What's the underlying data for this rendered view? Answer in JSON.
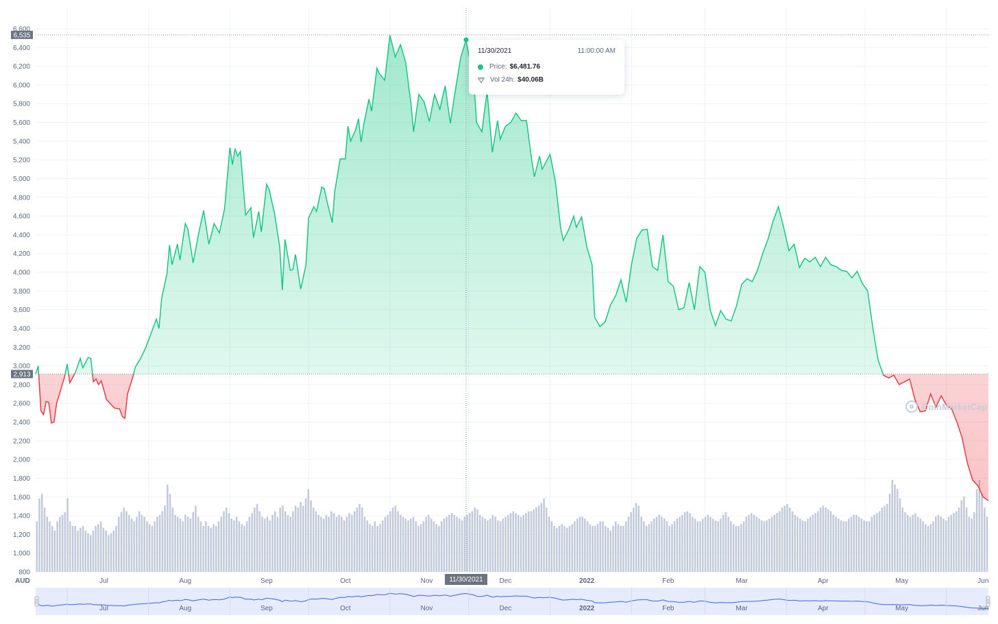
{
  "chart_data": {
    "type": "area",
    "currency_label": "AUD",
    "ylim": [
      800,
      6600
    ],
    "y_ticks": [
      "800",
      "1,000",
      "1,200",
      "1,400",
      "1,600",
      "1,800",
      "2,000",
      "2,200",
      "2,400",
      "2,600",
      "2,800",
      "3,000",
      "3,200",
      "3,400",
      "3,600",
      "3,800",
      "4,000",
      "4,200",
      "4,400",
      "4,600",
      "4,800",
      "5,000",
      "5,200",
      "5,400",
      "5,600",
      "5,800",
      "6,000",
      "6,200",
      "6,400",
      "6,600"
    ],
    "x_ticks": [
      {
        "label": "Jul",
        "bold": false
      },
      {
        "label": "Aug",
        "bold": false
      },
      {
        "label": "Sep",
        "bold": false
      },
      {
        "label": "Oct",
        "bold": false
      },
      {
        "label": "Nov",
        "bold": false
      },
      {
        "label": "Dec",
        "bold": false
      },
      {
        "label": "2022",
        "bold": true
      },
      {
        "label": "Feb",
        "bold": false
      },
      {
        "label": "Mar",
        "bold": false
      },
      {
        "label": "Apr",
        "bold": false
      },
      {
        "label": "May",
        "bold": false
      },
      {
        "label": "Jun",
        "bold": false
      }
    ],
    "x_start": "2021-06-19",
    "x_end": "2022-06-17",
    "baseline_value": 2913,
    "baseline_label": "2,913",
    "high_label": "6,535",
    "high_value": 6535,
    "price_keypoints": [
      [
        "2021-06-19",
        2913
      ],
      [
        "2021-06-20",
        3000
      ],
      [
        "2021-06-21",
        2520
      ],
      [
        "2021-06-22",
        2480
      ],
      [
        "2021-06-23",
        2620
      ],
      [
        "2021-06-24",
        2610
      ],
      [
        "2021-06-25",
        2390
      ],
      [
        "2021-06-26",
        2400
      ],
      [
        "2021-06-27",
        2600
      ],
      [
        "2021-06-30",
        2880
      ],
      [
        "2021-07-01",
        3020
      ],
      [
        "2021-07-02",
        2820
      ],
      [
        "2021-07-04",
        2920
      ],
      [
        "2021-07-06",
        3080
      ],
      [
        "2021-07-07",
        2980
      ],
      [
        "2021-07-09",
        3090
      ],
      [
        "2021-07-10",
        3080
      ],
      [
        "2021-07-11",
        2830
      ],
      [
        "2021-07-12",
        2860
      ],
      [
        "2021-07-13",
        2800
      ],
      [
        "2021-07-14",
        2840
      ],
      [
        "2021-07-16",
        2640
      ],
      [
        "2021-07-18",
        2580
      ],
      [
        "2021-07-19",
        2550
      ],
      [
        "2021-07-21",
        2540
      ],
      [
        "2021-07-22",
        2460
      ],
      [
        "2021-07-23",
        2440
      ],
      [
        "2021-07-24",
        2700
      ],
      [
        "2021-07-26",
        2880
      ],
      [
        "2021-07-27",
        2990
      ],
      [
        "2021-07-29",
        3080
      ],
      [
        "2021-07-31",
        3200
      ],
      [
        "2021-08-02",
        3350
      ],
      [
        "2021-08-04",
        3500
      ],
      [
        "2021-08-05",
        3400
      ],
      [
        "2021-08-06",
        3720
      ],
      [
        "2021-08-08",
        3980
      ],
      [
        "2021-08-09",
        4290
      ],
      [
        "2021-08-10",
        4080
      ],
      [
        "2021-08-12",
        4300
      ],
      [
        "2021-08-13",
        4130
      ],
      [
        "2021-08-15",
        4520
      ],
      [
        "2021-08-16",
        4460
      ],
      [
        "2021-08-18",
        4100
      ],
      [
        "2021-08-20",
        4400
      ],
      [
        "2021-08-22",
        4660
      ],
      [
        "2021-08-24",
        4300
      ],
      [
        "2021-08-26",
        4520
      ],
      [
        "2021-08-28",
        4420
      ],
      [
        "2021-08-30",
        4680
      ],
      [
        "2021-09-01",
        5330
      ],
      [
        "2021-09-02",
        5150
      ],
      [
        "2021-09-03",
        5320
      ],
      [
        "2021-09-04",
        5240
      ],
      [
        "2021-09-05",
        5290
      ],
      [
        "2021-09-07",
        4610
      ],
      [
        "2021-09-09",
        4690
      ],
      [
        "2021-09-10",
        4370
      ],
      [
        "2021-09-12",
        4650
      ],
      [
        "2021-09-13",
        4430
      ],
      [
        "2021-09-15",
        4940
      ],
      [
        "2021-09-16",
        4880
      ],
      [
        "2021-09-18",
        4630
      ],
      [
        "2021-09-20",
        4270
      ],
      [
        "2021-09-21",
        3810
      ],
      [
        "2021-09-22",
        4350
      ],
      [
        "2021-09-24",
        4020
      ],
      [
        "2021-09-25",
        4030
      ],
      [
        "2021-09-26",
        4190
      ],
      [
        "2021-09-28",
        3820
      ],
      [
        "2021-09-30",
        4080
      ],
      [
        "2021-10-01",
        4580
      ],
      [
        "2021-10-03",
        4700
      ],
      [
        "2021-10-04",
        4650
      ],
      [
        "2021-10-06",
        4910
      ],
      [
        "2021-10-07",
        4890
      ],
      [
        "2021-10-08",
        4760
      ],
      [
        "2021-10-10",
        4530
      ],
      [
        "2021-10-11",
        4870
      ],
      [
        "2021-10-13",
        5210
      ],
      [
        "2021-10-15",
        5210
      ],
      [
        "2021-10-16",
        5560
      ],
      [
        "2021-10-17",
        5400
      ],
      [
        "2021-10-19",
        5530
      ],
      [
        "2021-10-20",
        5640
      ],
      [
        "2021-10-21",
        5390
      ],
      [
        "2021-10-22",
        5580
      ],
      [
        "2021-10-24",
        5850
      ],
      [
        "2021-10-25",
        5720
      ],
      [
        "2021-10-27",
        6180
      ],
      [
        "2021-10-28",
        6120
      ],
      [
        "2021-10-30",
        6050
      ],
      [
        "2021-11-01",
        6530
      ],
      [
        "2021-11-03",
        6300
      ],
      [
        "2021-11-05",
        6430
      ],
      [
        "2021-11-07",
        6240
      ],
      [
        "2021-11-09",
        5800
      ],
      [
        "2021-11-10",
        5500
      ],
      [
        "2021-11-12",
        5900
      ],
      [
        "2021-11-14",
        5820
      ],
      [
        "2021-11-16",
        5610
      ],
      [
        "2021-11-18",
        5900
      ],
      [
        "2021-11-20",
        5740
      ],
      [
        "2021-11-22",
        5990
      ],
      [
        "2021-11-24",
        5590
      ],
      [
        "2021-11-26",
        5960
      ],
      [
        "2021-11-28",
        6300
      ],
      [
        "2021-11-30",
        6482
      ],
      [
        "2021-12-01",
        6320
      ],
      [
        "2021-12-03",
        6020
      ],
      [
        "2021-12-04",
        5600
      ],
      [
        "2021-12-06",
        5500
      ],
      [
        "2021-12-08",
        5930
      ],
      [
        "2021-12-10",
        5280
      ],
      [
        "2021-12-12",
        5620
      ],
      [
        "2021-12-13",
        5420
      ],
      [
        "2021-12-15",
        5560
      ],
      [
        "2021-12-17",
        5600
      ],
      [
        "2021-12-19",
        5700
      ],
      [
        "2021-12-21",
        5620
      ],
      [
        "2021-12-23",
        5620
      ],
      [
        "2021-12-25",
        5200
      ],
      [
        "2021-12-26",
        5020
      ],
      [
        "2021-12-28",
        5240
      ],
      [
        "2021-12-29",
        5100
      ],
      [
        "2022-01-01",
        5260
      ],
      [
        "2022-01-03",
        4970
      ],
      [
        "2022-01-05",
        4480
      ],
      [
        "2022-01-06",
        4340
      ],
      [
        "2022-01-08",
        4450
      ],
      [
        "2022-01-10",
        4600
      ],
      [
        "2022-01-11",
        4480
      ],
      [
        "2022-01-13",
        4590
      ],
      [
        "2022-01-15",
        4270
      ],
      [
        "2022-01-17",
        4080
      ],
      [
        "2022-01-18",
        3520
      ],
      [
        "2022-01-20",
        3420
      ],
      [
        "2022-01-22",
        3470
      ],
      [
        "2022-01-24",
        3650
      ],
      [
        "2022-01-26",
        3750
      ],
      [
        "2022-01-28",
        3920
      ],
      [
        "2022-01-30",
        3680
      ],
      [
        "2022-02-01",
        4080
      ],
      [
        "2022-02-03",
        4360
      ],
      [
        "2022-02-05",
        4450
      ],
      [
        "2022-02-07",
        4460
      ],
      [
        "2022-02-09",
        4060
      ],
      [
        "2022-02-11",
        4020
      ],
      [
        "2022-02-13",
        4400
      ],
      [
        "2022-02-15",
        3900
      ],
      [
        "2022-02-17",
        3850
      ],
      [
        "2022-02-19",
        3600
      ],
      [
        "2022-02-21",
        3620
      ],
      [
        "2022-02-23",
        3890
      ],
      [
        "2022-02-25",
        3600
      ],
      [
        "2022-02-27",
        4060
      ],
      [
        "2022-03-01",
        4000
      ],
      [
        "2022-03-03",
        3600
      ],
      [
        "2022-03-05",
        3430
      ],
      [
        "2022-03-07",
        3590
      ],
      [
        "2022-03-09",
        3500
      ],
      [
        "2022-03-11",
        3480
      ],
      [
        "2022-03-13",
        3640
      ],
      [
        "2022-03-15",
        3870
      ],
      [
        "2022-03-17",
        3930
      ],
      [
        "2022-03-19",
        3900
      ],
      [
        "2022-03-21",
        4020
      ],
      [
        "2022-03-23",
        4200
      ],
      [
        "2022-03-25",
        4350
      ],
      [
        "2022-03-27",
        4550
      ],
      [
        "2022-03-29",
        4700
      ],
      [
        "2022-03-31",
        4480
      ],
      [
        "2022-04-02",
        4230
      ],
      [
        "2022-04-04",
        4300
      ],
      [
        "2022-04-06",
        4050
      ],
      [
        "2022-04-08",
        4150
      ],
      [
        "2022-04-10",
        4110
      ],
      [
        "2022-04-12",
        4160
      ],
      [
        "2022-04-14",
        4060
      ],
      [
        "2022-04-16",
        4160
      ],
      [
        "2022-04-18",
        4080
      ],
      [
        "2022-04-20",
        4060
      ],
      [
        "2022-04-22",
        4020
      ],
      [
        "2022-04-24",
        4010
      ],
      [
        "2022-04-26",
        3940
      ],
      [
        "2022-04-28",
        4010
      ],
      [
        "2022-04-30",
        3880
      ],
      [
        "2022-05-02",
        3800
      ],
      [
        "2022-05-04",
        3400
      ],
      [
        "2022-05-06",
        3060
      ],
      [
        "2022-05-08",
        2900
      ],
      [
        "2022-05-10",
        2870
      ],
      [
        "2022-05-12",
        2900
      ],
      [
        "2022-05-14",
        2800
      ],
      [
        "2022-05-16",
        2830
      ],
      [
        "2022-05-18",
        2860
      ],
      [
        "2022-05-20",
        2640
      ],
      [
        "2022-05-22",
        2510
      ],
      [
        "2022-05-24",
        2520
      ],
      [
        "2022-05-26",
        2700
      ],
      [
        "2022-05-28",
        2560
      ],
      [
        "2022-05-30",
        2680
      ],
      [
        "2022-06-01",
        2580
      ],
      [
        "2022-06-03",
        2540
      ],
      [
        "2022-06-05",
        2400
      ],
      [
        "2022-06-07",
        2230
      ],
      [
        "2022-06-09",
        1960
      ],
      [
        "2022-06-11",
        1780
      ],
      [
        "2022-06-13",
        1720
      ],
      [
        "2022-06-15",
        1600
      ],
      [
        "2022-06-17",
        1560
      ]
    ],
    "volume_levels": [
      0.55,
      0.8,
      0.85,
      0.7,
      0.6,
      0.55,
      0.5,
      0.45,
      0.55,
      0.6,
      0.62,
      0.65,
      0.8,
      0.55,
      0.5,
      0.5,
      0.45,
      0.48,
      0.5,
      0.45,
      0.42,
      0.4,
      0.45,
      0.5,
      0.52,
      0.55,
      0.48,
      0.45,
      0.4,
      0.42,
      0.45,
      0.5,
      0.6,
      0.65,
      0.7,
      0.66,
      0.62,
      0.58,
      0.55,
      0.6,
      0.66,
      0.62,
      0.6,
      0.55,
      0.52,
      0.5,
      0.55,
      0.6,
      0.62,
      0.66,
      0.72,
      0.95,
      0.85,
      0.7,
      0.62,
      0.6,
      0.58,
      0.55,
      0.62,
      0.6,
      0.58,
      0.65,
      0.72,
      0.6,
      0.55,
      0.5,
      0.55,
      0.5,
      0.48,
      0.52,
      0.5,
      0.55,
      0.6,
      0.66,
      0.7,
      0.64,
      0.58,
      0.56,
      0.6,
      0.55,
      0.52,
      0.5,
      0.55,
      0.6,
      0.64,
      0.7,
      0.74,
      0.66,
      0.6,
      0.58,
      0.6,
      0.56,
      0.62,
      0.66,
      0.6,
      0.7,
      0.72,
      0.66,
      0.62,
      0.6,
      0.66,
      0.72,
      0.7,
      0.76,
      0.72,
      0.8,
      0.9,
      0.78,
      0.7,
      0.66,
      0.62,
      0.6,
      0.58,
      0.62,
      0.6,
      0.66,
      0.64,
      0.6,
      0.62,
      0.6,
      0.56,
      0.6,
      0.64,
      0.62,
      0.66,
      0.7,
      0.74,
      0.7,
      0.6,
      0.56,
      0.52,
      0.5,
      0.55,
      0.5,
      0.52,
      0.56,
      0.6,
      0.62,
      0.66,
      0.7,
      0.72,
      0.66,
      0.62,
      0.6,
      0.58,
      0.56,
      0.58,
      0.6,
      0.55,
      0.5,
      0.52,
      0.55,
      0.6,
      0.62,
      0.58,
      0.55,
      0.52,
      0.5,
      0.55,
      0.58,
      0.6,
      0.62,
      0.64,
      0.62,
      0.6,
      0.58,
      0.56,
      0.6,
      0.62,
      0.64,
      0.66,
      0.7,
      0.68,
      0.62,
      0.6,
      0.58,
      0.56,
      0.58,
      0.62,
      0.6,
      0.56,
      0.55,
      0.58,
      0.6,
      0.62,
      0.64,
      0.66,
      0.64,
      0.62,
      0.6,
      0.62,
      0.64,
      0.66,
      0.66,
      0.68,
      0.7,
      0.72,
      0.75,
      0.8,
      0.7,
      0.6,
      0.55,
      0.5,
      0.48,
      0.5,
      0.52,
      0.5,
      0.48,
      0.5,
      0.52,
      0.55,
      0.58,
      0.6,
      0.6,
      0.58,
      0.55,
      0.52,
      0.5,
      0.5,
      0.52,
      0.55,
      0.55,
      0.5,
      0.48,
      0.45,
      0.5,
      0.55,
      0.52,
      0.5,
      0.5,
      0.55,
      0.6,
      0.65,
      0.7,
      0.75,
      0.72,
      0.6,
      0.55,
      0.5,
      0.52,
      0.55,
      0.58,
      0.6,
      0.62,
      0.6,
      0.58,
      0.55,
      0.5,
      0.52,
      0.55,
      0.58,
      0.6,
      0.62,
      0.65,
      0.66,
      0.64,
      0.6,
      0.58,
      0.55,
      0.55,
      0.58,
      0.6,
      0.62,
      0.6,
      0.58,
      0.56,
      0.55,
      0.58,
      0.62,
      0.65,
      0.6,
      0.55,
      0.52,
      0.5,
      0.5,
      0.52,
      0.55,
      0.6,
      0.62,
      0.64,
      0.62,
      0.6,
      0.58,
      0.56,
      0.55,
      0.56,
      0.58,
      0.6,
      0.62,
      0.64,
      0.66,
      0.7,
      0.72,
      0.74,
      0.7,
      0.66,
      0.62,
      0.6,
      0.58,
      0.56,
      0.55,
      0.58,
      0.6,
      0.62,
      0.64,
      0.66,
      0.7,
      0.72,
      0.7,
      0.68,
      0.66,
      0.62,
      0.6,
      0.58,
      0.56,
      0.55,
      0.55,
      0.58,
      0.6,
      0.62,
      0.62,
      0.6,
      0.58,
      0.56,
      0.55,
      0.55,
      0.6,
      0.62,
      0.64,
      0.66,
      0.7,
      0.72,
      0.74,
      0.85,
      1.0,
      0.95,
      0.9,
      0.8,
      0.7,
      0.65,
      0.62,
      0.6,
      0.62,
      0.64,
      0.6,
      0.58,
      0.55,
      0.52,
      0.5,
      0.52,
      0.55,
      0.6,
      0.62,
      0.6,
      0.58,
      0.56,
      0.6,
      0.62,
      0.64,
      0.66,
      0.7,
      0.78,
      0.82,
      0.7,
      0.6,
      0.58,
      0.65,
      0.9,
      1.0,
      0.85,
      0.7,
      0.6
    ]
  },
  "tooltip": {
    "date": "11/30/2021",
    "time": "11:00:00 AM",
    "price_label": "Price:",
    "price_value": "$6,481.76",
    "vol_label": "Vol 24h:",
    "vol_value": "$40.06B"
  },
  "crosshair": {
    "date": "2021-11-30",
    "label": "11/30/2021"
  },
  "watermark": {
    "text": "CoinMarketCap"
  },
  "navigator": {
    "x_ticks": [
      "Jul",
      "Aug",
      "Sep",
      "Oct",
      "Nov",
      "Dec",
      "2022",
      "Feb",
      "Mar",
      "Apr",
      "May",
      "Jun"
    ]
  },
  "colors": {
    "up": "#16c784",
    "down": "#ea3943",
    "volume": "#c2c9d9",
    "navigator_line": "#3861fb",
    "navigator_fill": "#e6ebfd",
    "axis_label_bg": "#6b7280"
  }
}
